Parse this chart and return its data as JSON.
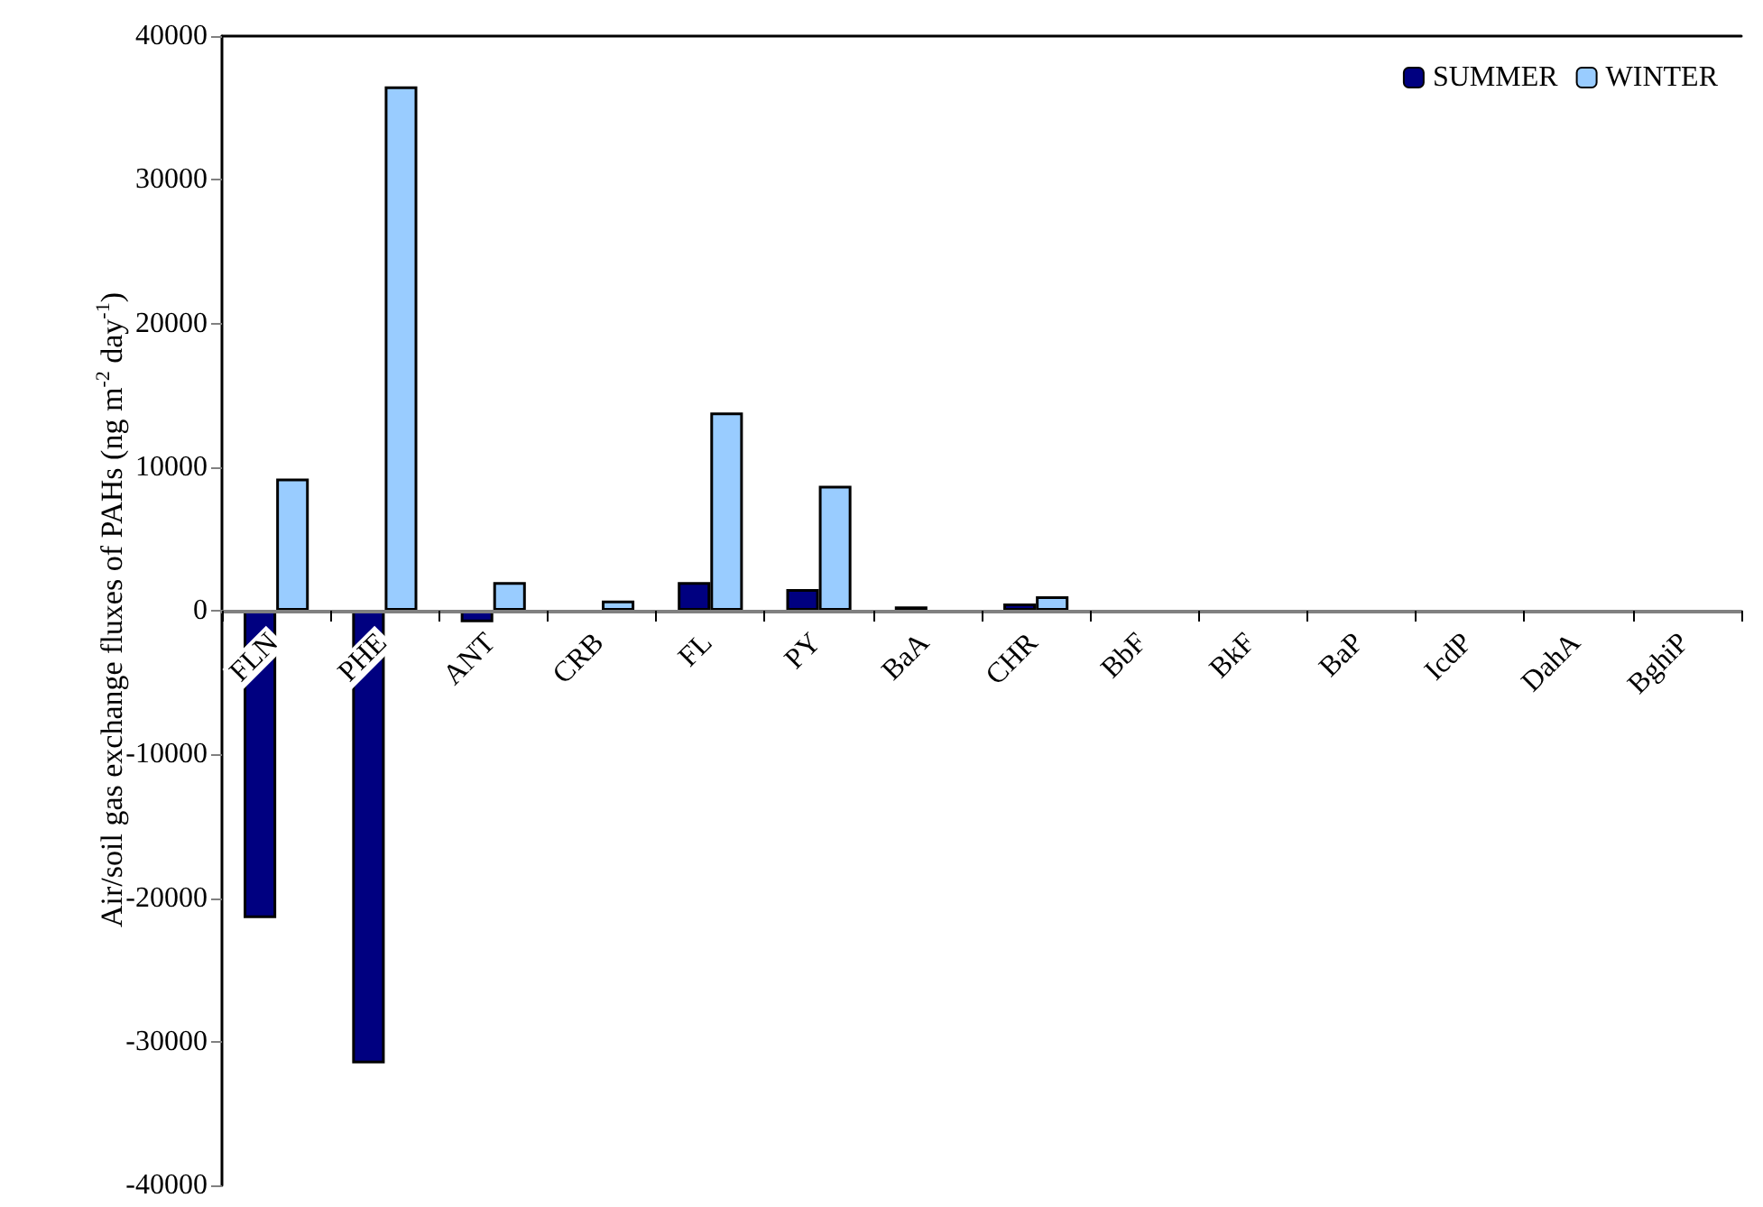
{
  "chart_data": {
    "type": "bar",
    "ylabel": "Air/soil gas exchange fluxes of PAHs (ng m$^{-2}$ day$^{-1}$)",
    "categories": [
      "FLN",
      "PHE",
      "ANT",
      "CRB",
      "FL",
      "PY",
      "BaA",
      "CHR",
      "BbF",
      "BkF",
      "BaP",
      "IcdP",
      "DahA",
      "BghiP"
    ],
    "series": [
      {
        "name": "SUMMER",
        "color": "#000080",
        "values": [
          -21400,
          -31500,
          -800,
          null,
          2000,
          1500,
          300,
          500,
          null,
          null,
          null,
          null,
          null,
          null
        ]
      },
      {
        "name": "WINTER",
        "color": "#99ccff",
        "values": [
          9200,
          36500,
          2000,
          700,
          13800,
          8700,
          null,
          1000,
          null,
          null,
          null,
          null,
          null,
          null
        ]
      }
    ],
    "ylim": [
      -40000,
      40000
    ],
    "yticks": [
      -40000,
      -30000,
      -20000,
      -10000,
      0,
      10000,
      20000,
      30000,
      40000
    ],
    "grid": false,
    "legend": "top right"
  }
}
